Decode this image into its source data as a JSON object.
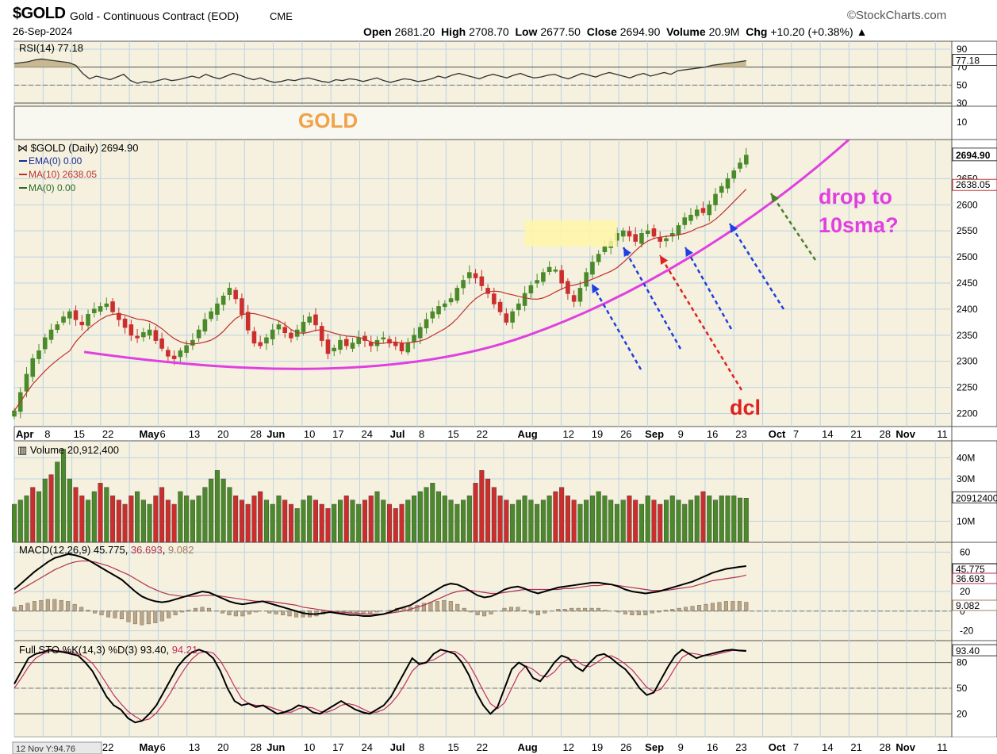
{
  "header": {
    "symbol": "$GOLD",
    "name": "Gold - Continuous Contract (EOD)",
    "exchange": "CME",
    "date": "26-Sep-2024",
    "watermark": "©StockCharts.com",
    "open_label": "Open",
    "open": "2681.20",
    "high_label": "High",
    "high": "2708.70",
    "low_label": "Low",
    "low": "2677.50",
    "close_label": "Close",
    "close": "2694.90",
    "volume_label": "Volume",
    "volume": "20.9M",
    "chg_label": "Chg",
    "chg": "+10.20 (+0.38%)"
  },
  "colors": {
    "panel_bg": "#f5f1de",
    "grid": "#bcd3e4",
    "up": "#4a8a2a",
    "down": "#cc2e2e",
    "ma10": "#c03030",
    "curve": "#e040e0",
    "arrow_blue": "#1f3fe0",
    "arrow_red": "#e02020",
    "arrow_green": "#4a7d2a",
    "gold_text": "#f0a24a",
    "pink_text": "#e040e0",
    "consolidation_box": "#fff6a8"
  },
  "annotations": {
    "gold": "GOLD",
    "drop": "drop to",
    "drop2": "10sma?",
    "dcl": "dcl"
  },
  "chart_data": [
    {
      "type": "line",
      "panel": "rsi",
      "title": "RSI(14) 77.18",
      "last_value": "77.18",
      "ylim": [
        0,
        100
      ],
      "ticks": [
        "90",
        "70",
        "50",
        "30",
        "10"
      ],
      "reference_lines": [
        70,
        30
      ],
      "values": [
        74,
        75,
        76,
        78,
        79,
        78,
        77,
        76,
        75,
        72,
        63,
        57,
        60,
        58,
        56,
        59,
        62,
        55,
        52,
        54,
        53,
        55,
        57,
        55,
        56,
        58,
        60,
        58,
        62,
        59,
        57,
        60,
        63,
        61,
        58,
        56,
        58,
        55,
        53,
        54,
        56,
        55,
        57,
        58,
        56,
        54,
        53,
        56,
        55,
        57,
        56,
        54,
        56,
        58,
        55,
        53,
        55,
        57,
        56,
        54,
        55,
        57,
        60,
        58,
        61,
        63,
        61,
        59,
        57,
        60,
        62,
        60,
        58,
        61,
        63,
        60,
        58,
        59,
        61,
        62,
        59,
        57,
        60,
        63,
        61,
        59,
        62,
        64,
        62,
        60,
        58,
        61,
        63,
        60,
        62,
        64,
        62,
        66,
        67,
        68,
        69,
        70,
        72,
        73,
        74,
        75,
        76,
        77.18
      ]
    },
    {
      "type": "candlestick",
      "panel": "price",
      "title": "$GOLD (Daily) 2694.90",
      "legend": [
        "EMA(0) 0.00",
        "MA(10) 2638.05",
        "MA(0) 0.00"
      ],
      "ylim": [
        2175,
        2725
      ],
      "ticks": [
        "2694.90",
        "2650",
        "2600",
        "2550",
        "2500",
        "2450",
        "2400",
        "2350",
        "2300",
        "2250",
        "2200"
      ],
      "right_labels": [
        "2694.90",
        "2638.05"
      ],
      "x_labels": [
        "Apr",
        "8",
        "15",
        "22",
        "May",
        "6",
        "13",
        "20",
        "28",
        "Jun",
        "10",
        "17",
        "24",
        "Jul",
        "8",
        "15",
        "22",
        "Aug",
        "12",
        "19",
        "26",
        "Sep",
        "9",
        "16",
        "23",
        "Oct",
        "7",
        "14",
        "21",
        "28",
        "Nov",
        "11"
      ],
      "close": [
        2205,
        2240,
        2275,
        2305,
        2320,
        2345,
        2360,
        2370,
        2385,
        2395,
        2380,
        2370,
        2390,
        2400,
        2405,
        2410,
        2395,
        2380,
        2365,
        2350,
        2345,
        2355,
        2360,
        2340,
        2325,
        2310,
        2305,
        2320,
        2330,
        2340,
        2360,
        2380,
        2395,
        2410,
        2425,
        2440,
        2420,
        2390,
        2360,
        2335,
        2330,
        2345,
        2360,
        2370,
        2355,
        2345,
        2360,
        2375,
        2385,
        2370,
        2340,
        2315,
        2325,
        2340,
        2330,
        2335,
        2345,
        2340,
        2330,
        2340,
        2345,
        2335,
        2330,
        2320,
        2335,
        2350,
        2365,
        2380,
        2395,
        2405,
        2410,
        2420,
        2440,
        2455,
        2470,
        2460,
        2445,
        2430,
        2410,
        2395,
        2375,
        2395,
        2410,
        2430,
        2445,
        2455,
        2470,
        2480,
        2475,
        2450,
        2430,
        2415,
        2440,
        2470,
        2490,
        2505,
        2520,
        2530,
        2545,
        2550,
        2540,
        2530,
        2545,
        2550,
        2540,
        2530,
        2535,
        2545,
        2560,
        2575,
        2580,
        2590,
        2585,
        2600,
        2620,
        2635,
        2650,
        2665,
        2680,
        2694.9
      ],
      "ma10_last": 2638.05
    },
    {
      "type": "bar",
      "panel": "volume",
      "title": "Volume 20,912,400",
      "ticks": [
        "40M",
        "30M",
        "10M"
      ],
      "right_label": "20912400",
      "unit": "M",
      "values": [
        18,
        20,
        22,
        26,
        24,
        30,
        32,
        38,
        44,
        30,
        26,
        22,
        20,
        24,
        28,
        26,
        22,
        20,
        18,
        22,
        24,
        20,
        18,
        22,
        26,
        20,
        18,
        24,
        22,
        20,
        22,
        26,
        30,
        34,
        30,
        26,
        22,
        20,
        18,
        22,
        24,
        20,
        18,
        22,
        20,
        18,
        16,
        20,
        22,
        20,
        18,
        16,
        18,
        20,
        22,
        20,
        18,
        20,
        22,
        24,
        20,
        18,
        16,
        18,
        20,
        22,
        24,
        26,
        28,
        24,
        22,
        20,
        18,
        20,
        22,
        28,
        34,
        30,
        26,
        22,
        20,
        18,
        20,
        22,
        20,
        18,
        20,
        22,
        24,
        26,
        22,
        20,
        18,
        20,
        22,
        24,
        22,
        20,
        18,
        20,
        22,
        20,
        18,
        22,
        20,
        18,
        20,
        22,
        20,
        18,
        20,
        22,
        24,
        22,
        20,
        22,
        22,
        22,
        21,
        20.9
      ],
      "up": [
        true,
        true,
        true,
        false,
        true,
        true,
        false,
        true,
        true,
        true,
        false,
        false,
        true,
        true,
        false,
        true,
        false,
        false,
        false,
        false,
        true,
        true,
        true,
        false,
        false,
        false,
        false,
        true,
        true,
        true,
        true,
        true,
        true,
        true,
        true,
        true,
        false,
        false,
        false,
        false,
        false,
        true,
        true,
        true,
        false,
        false,
        true,
        true,
        true,
        false,
        false,
        false,
        true,
        true,
        false,
        true,
        true,
        false,
        false,
        true,
        true,
        false,
        false,
        false,
        true,
        true,
        true,
        true,
        true,
        true,
        true,
        true,
        true,
        true,
        true,
        false,
        false,
        false,
        false,
        false,
        false,
        true,
        true,
        true,
        true,
        true,
        true,
        true,
        false,
        false,
        false,
        false,
        true,
        true,
        true,
        true,
        true,
        true,
        true,
        true,
        false,
        false,
        true,
        true,
        false,
        false,
        true,
        true,
        true,
        true,
        true,
        true,
        false,
        true,
        true,
        true,
        true,
        true,
        true,
        true
      ]
    },
    {
      "type": "line",
      "panel": "macd",
      "title": "MACD(12,26,9) 45.775, 36.693, 9.082",
      "title_parts": [
        "MACD(12,26,9) ",
        "45.775",
        ", ",
        "36.693",
        ", ",
        "9.082"
      ],
      "ticks": [
        "60",
        "20",
        "0",
        "-20"
      ],
      "right_labels": [
        "45.775",
        "36.693",
        "9.082"
      ],
      "ylim": [
        -30,
        70
      ],
      "macd": [
        22,
        28,
        34,
        40,
        45,
        50,
        54,
        56,
        58,
        57,
        55,
        52,
        48,
        44,
        40,
        36,
        32,
        26,
        20,
        15,
        12,
        10,
        9,
        10,
        12,
        14,
        16,
        18,
        20,
        19,
        16,
        13,
        10,
        8,
        7,
        8,
        9,
        10,
        8,
        6,
        4,
        2,
        0,
        -2,
        -3,
        -3,
        -2,
        -1,
        -2,
        -3,
        -4,
        -4,
        -5,
        -5,
        -4,
        -3,
        -1,
        2,
        4,
        6,
        10,
        14,
        18,
        22,
        26,
        28,
        27,
        24,
        20,
        16,
        14,
        15,
        18,
        22,
        24,
        25,
        23,
        20,
        18,
        20,
        22,
        24,
        25,
        26,
        27,
        28,
        29,
        29,
        28,
        27,
        25,
        22,
        20,
        19,
        18,
        19,
        20,
        22,
        24,
        26,
        28,
        30,
        33,
        36,
        39,
        41,
        43,
        44,
        45,
        45.775
      ],
      "signal": [
        18,
        22,
        26,
        30,
        34,
        38,
        42,
        45,
        48,
        50,
        51,
        51,
        50,
        48,
        46,
        43,
        40,
        37,
        33,
        29,
        25,
        22,
        19,
        17,
        16,
        15,
        15,
        15,
        16,
        16,
        16,
        15,
        14,
        13,
        12,
        11,
        10,
        10,
        10,
        9,
        8,
        7,
        6,
        4,
        3,
        2,
        1,
        0,
        -1,
        -1,
        -2,
        -2,
        -3,
        -3,
        -3,
        -3,
        -2,
        -1,
        0,
        2,
        4,
        6,
        9,
        12,
        15,
        18,
        20,
        21,
        21,
        20,
        19,
        18,
        18,
        19,
        20,
        21,
        22,
        22,
        22,
        22,
        22,
        22,
        23,
        23,
        24,
        25,
        26,
        26,
        27,
        27,
        26,
        25,
        24,
        23,
        22,
        21,
        21,
        21,
        22,
        23,
        24,
        25,
        27,
        29,
        31,
        32,
        33,
        34,
        35,
        36.693
      ],
      "histogram": [
        4,
        6,
        8,
        10,
        11,
        12,
        12,
        11,
        10,
        7,
        4,
        1,
        -2,
        -4,
        -6,
        -7,
        -8,
        -11,
        -13,
        -14,
        -13,
        -12,
        -10,
        -7,
        -4,
        -1,
        1,
        3,
        4,
        3,
        0,
        -2,
        -4,
        -5,
        -5,
        -3,
        -1,
        0,
        -2,
        -3,
        -4,
        -5,
        -6,
        -6,
        -6,
        -5,
        -3,
        -1,
        -1,
        -2,
        -2,
        -2,
        -2,
        -2,
        -1,
        0,
        1,
        3,
        4,
        4,
        6,
        8,
        9,
        10,
        11,
        10,
        7,
        3,
        -1,
        -4,
        -5,
        -3,
        0,
        3,
        4,
        4,
        1,
        -2,
        -4,
        -2,
        0,
        2,
        2,
        3,
        3,
        3,
        3,
        3,
        1,
        0,
        -1,
        -3,
        -4,
        -4,
        -4,
        -2,
        -1,
        1,
        2,
        3,
        4,
        5,
        6,
        7,
        8,
        9,
        10,
        10,
        10,
        9.082
      ]
    },
    {
      "type": "line",
      "panel": "sto",
      "title": "Full STO %K(14,3) %D(3) 93.40, 94.21",
      "title_parts": [
        "Full STO %K(14,3) %D(3) ",
        "93.40",
        ", ",
        "94.21"
      ],
      "ticks": [
        "80",
        "50",
        "20"
      ],
      "right_label": "93.40",
      "ylim": [
        0,
        100
      ],
      "reference_lines": [
        80,
        20
      ],
      "k": [
        55,
        70,
        85,
        90,
        92,
        95,
        93,
        92,
        90,
        88,
        80,
        70,
        55,
        40,
        30,
        25,
        15,
        10,
        12,
        20,
        30,
        45,
        60,
        75,
        85,
        92,
        95,
        92,
        85,
        70,
        50,
        35,
        30,
        32,
        28,
        30,
        25,
        20,
        22,
        25,
        30,
        28,
        22,
        20,
        25,
        30,
        35,
        30,
        25,
        22,
        20,
        25,
        30,
        40,
        55,
        70,
        85,
        78,
        80,
        90,
        95,
        93,
        90,
        80,
        65,
        45,
        30,
        20,
        28,
        50,
        72,
        80,
        75,
        62,
        58,
        68,
        80,
        88,
        85,
        75,
        70,
        80,
        88,
        90,
        85,
        78,
        72,
        62,
        50,
        42,
        45,
        60,
        75,
        88,
        95,
        90,
        85,
        88,
        90,
        92,
        94,
        95,
        94,
        93.4
      ],
      "d": [
        50,
        62,
        75,
        85,
        90,
        93,
        94,
        93,
        92,
        90,
        86,
        79,
        68,
        55,
        42,
        32,
        23,
        17,
        12,
        14,
        21,
        32,
        45,
        60,
        73,
        84,
        91,
        93,
        91,
        82,
        68,
        52,
        38,
        32,
        30,
        30,
        28,
        25,
        22,
        22,
        26,
        28,
        27,
        23,
        22,
        25,
        30,
        32,
        30,
        26,
        22,
        22,
        25,
        32,
        42,
        55,
        70,
        78,
        81,
        83,
        88,
        93,
        93,
        88,
        78,
        63,
        47,
        32,
        26,
        33,
        50,
        67,
        76,
        72,
        65,
        63,
        69,
        79,
        84,
        83,
        77,
        75,
        80,
        86,
        88,
        84,
        78,
        71,
        61,
        51,
        46,
        49,
        60,
        74,
        86,
        91,
        90,
        88,
        88,
        90,
        92,
        94,
        94.5,
        94.21
      ]
    }
  ],
  "footer": {
    "zoom_label": "12 Nov Y:94.76",
    "x_labels": [
      "22",
      "May",
      "6",
      "13",
      "20",
      "28",
      "Jun",
      "10",
      "17",
      "24",
      "Jul",
      "8",
      "15",
      "22",
      "Aug",
      "12",
      "19",
      "26",
      "Sep",
      "9",
      "16",
      "23",
      "Oct",
      "7",
      "14",
      "21",
      "28",
      "Nov",
      "11"
    ]
  }
}
